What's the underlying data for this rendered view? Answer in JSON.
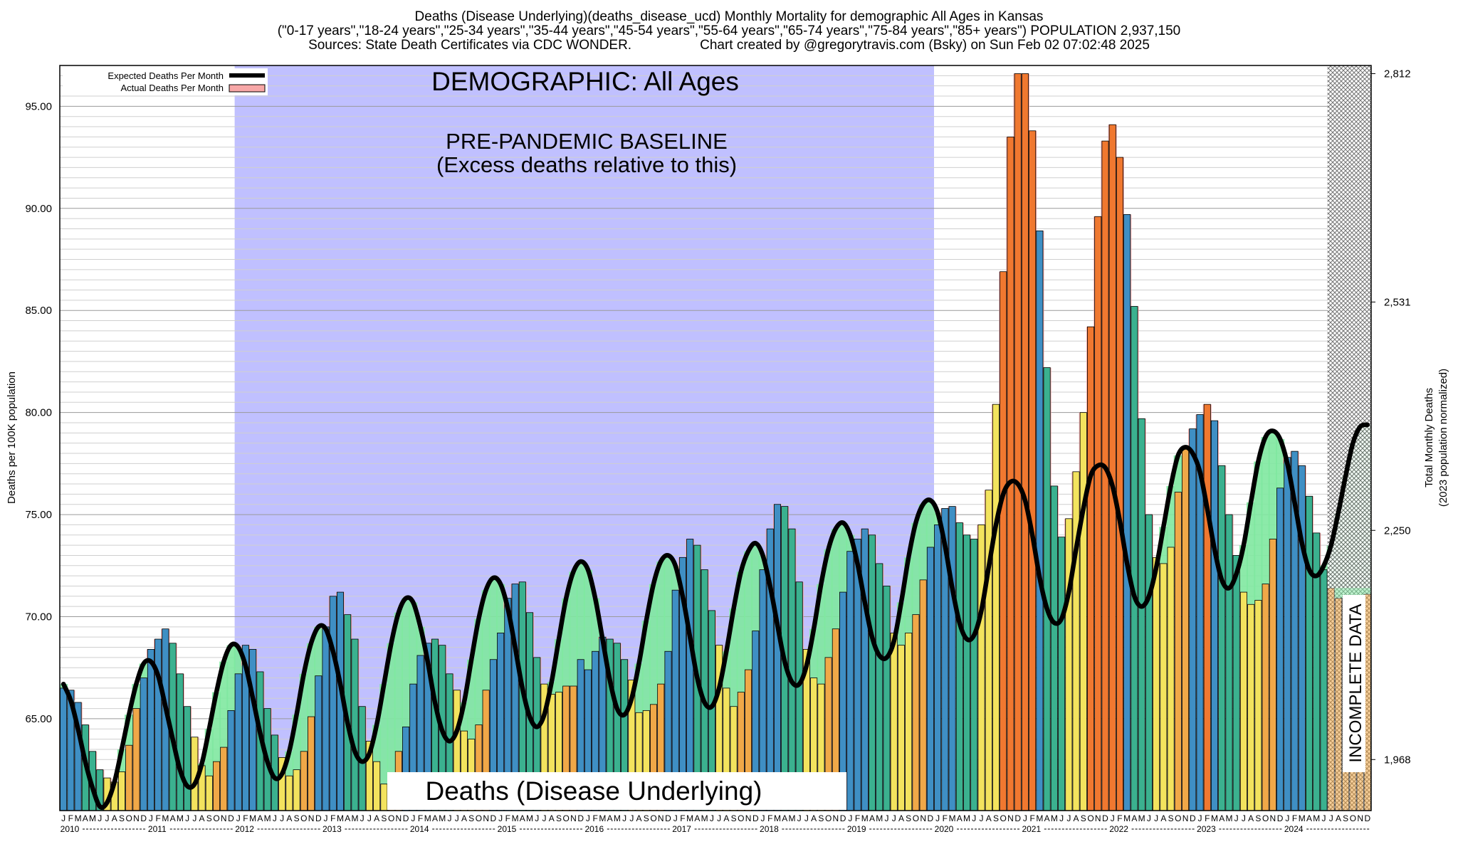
{
  "titles": {
    "line1": "Deaths (Disease Underlying)(deaths_disease_ucd) Monthly Mortality for demographic All Ages in Kansas",
    "line2": "(\"0-17 years\",\"18-24 years\",\"25-34 years\",\"35-44 years\",\"45-54 years\",\"55-64 years\",\"65-74 years\",\"75-84 years\",\"85+ years\") POPULATION 2,937,150",
    "line3_left": "Sources: State Death Certificates via CDC WONDER.",
    "line3_right": "Chart created by @gregorytravis.com (Bsky) on Sun Feb 02 07:02:48 2025"
  },
  "labels": {
    "demographic": "DEMOGRAPHIC: All Ages",
    "baseline_line1": "PRE-PANDEMIC BASELINE",
    "baseline_line2": "(Excess deaths relative to this)",
    "metric": "Deaths (Disease Underlying)",
    "incomplete": "INCOMPLETE DATA"
  },
  "legend": {
    "expected": "Expected Deaths Per Month",
    "actual": "Actual Deaths Per Month"
  },
  "colors": {
    "baseline_band": "#c0c0ff",
    "expected_line": "#000000",
    "actual_fill": "#f7a7a7",
    "excess_below": "#80e8a0",
    "winter_bar": "#3f8fc4",
    "spring_bar": "#3bb18f",
    "summer_bar": "#f3e35e",
    "fall_bar": "#f0a848",
    "peak_bar": "#f07830"
  },
  "chart_data": {
    "type": "bar",
    "ylabel": "Deaths per 100K population",
    "ylabel_right_line1": "Total Monthly Deaths",
    "ylabel_right_line2": "(2023 population normalized)",
    "ylim": [
      60.5,
      97.0
    ],
    "yticks": [
      65,
      70,
      75,
      80,
      85,
      90,
      95
    ],
    "ytick_labels": [
      "65.00",
      "70.00",
      "75.00",
      "80.00",
      "85.00",
      "90.00",
      "95.00"
    ],
    "yticks_right_values": [
      1968,
      2250,
      2531,
      2812
    ],
    "yticks_right_labels": [
      "1,968",
      "2,250",
      "2,531",
      "2,812"
    ],
    "start": "2010-01",
    "end": "2024-12",
    "month_letters": [
      "J",
      "F",
      "M",
      "A",
      "M",
      "J",
      "J",
      "A",
      "S",
      "O",
      "N",
      "D"
    ],
    "years": [
      "2010",
      "2011",
      "2012",
      "2013",
      "2014",
      "2015",
      "2016",
      "2017",
      "2018",
      "2019",
      "2020",
      "2021",
      "2022",
      "2023",
      "2024"
    ],
    "baseline_period": [
      "2012-01",
      "2019-12"
    ],
    "incomplete_from": "2024-07",
    "actual": [
      66.5,
      66.4,
      65.8,
      64.7,
      63.4,
      62.5,
      62.1,
      61.9,
      62.4,
      63.7,
      65.5,
      67.0,
      68.4,
      68.9,
      69.4,
      68.7,
      67.2,
      65.6,
      64.1,
      62.7,
      62.2,
      62.9,
      63.6,
      65.4,
      67.2,
      68.6,
      68.4,
      67.3,
      65.5,
      64.2,
      63.1,
      62.2,
      62.5,
      63.4,
      65.1,
      67.1,
      69.5,
      71.0,
      71.2,
      70.1,
      68.9,
      65.6,
      63.9,
      62.9,
      61.8,
      62.2,
      63.4,
      64.6,
      66.7,
      68.1,
      68.7,
      68.9,
      68.6,
      67.2,
      66.4,
      64.4,
      64.0,
      64.7,
      66.4,
      67.9,
      69.2,
      70.9,
      71.6,
      71.7,
      70.2,
      68.0,
      66.7,
      66.2,
      66.3,
      66.6,
      66.6,
      67.9,
      67.4,
      68.3,
      69.0,
      68.9,
      68.7,
      67.9,
      66.9,
      65.3,
      65.4,
      65.7,
      66.7,
      68.3,
      71.3,
      72.9,
      73.8,
      73.5,
      72.3,
      70.3,
      68.6,
      66.5,
      65.6,
      66.3,
      67.4,
      69.3,
      72.3,
      74.3,
      75.5,
      75.4,
      74.3,
      71.7,
      68.4,
      67.0,
      66.7,
      68.0,
      69.4,
      71.2,
      73.2,
      73.8,
      74.3,
      74.0,
      72.6,
      71.5,
      69.2,
      68.6,
      69.2,
      70.1,
      71.8,
      73.4,
      74.5,
      75.3,
      75.4,
      74.6,
      74.0,
      73.8,
      74.5,
      76.2,
      80.4,
      86.9,
      93.5,
      96.6,
      96.6,
      93.8,
      88.9,
      82.2,
      76.4,
      73.9,
      74.8,
      77.1,
      80.0,
      84.2,
      89.6,
      93.3,
      94.1,
      92.5,
      89.7,
      85.2,
      79.7,
      75.0,
      72.9,
      72.6,
      73.4,
      76.1,
      78.3,
      79.2,
      79.9,
      80.4,
      79.6,
      77.4,
      75.0,
      73.0,
      71.2,
      70.6,
      70.8,
      71.6,
      73.8,
      76.3,
      77.8,
      78.1,
      77.4,
      75.9,
      74.1,
      72.3,
      71.4,
      70.9,
      70.9,
      70.7,
      70.9,
      71.1
    ],
    "expected": [
      66.7,
      65.9,
      64.5,
      62.9,
      61.6,
      60.7,
      60.9,
      61.9,
      63.5,
      65.2,
      66.7,
      67.7,
      67.8,
      67.1,
      65.6,
      64.0,
      62.5,
      61.7,
      61.8,
      62.8,
      64.5,
      66.3,
      67.8,
      68.6,
      68.5,
      67.6,
      66.0,
      64.3,
      62.9,
      62.1,
      62.3,
      63.4,
      65.2,
      67.2,
      68.7,
      69.5,
      69.4,
      68.3,
      66.7,
      64.8,
      63.4,
      62.9,
      63.3,
      64.7,
      66.7,
      68.7,
      70.2,
      70.9,
      70.7,
      69.5,
      67.8,
      65.8,
      64.4,
      63.9,
      64.4,
      65.8,
      67.9,
      69.9,
      71.3,
      71.9,
      71.6,
      70.4,
      68.5,
      66.5,
      65.1,
      64.6,
      65.2,
      66.8,
      68.9,
      70.9,
      72.2,
      72.7,
      72.3,
      70.9,
      68.9,
      66.9,
      65.5,
      65.2,
      66.0,
      67.7,
      69.8,
      71.6,
      72.7,
      73.0,
      72.5,
      71.0,
      69.0,
      67.0,
      65.8,
      65.6,
      66.5,
      68.3,
      70.4,
      72.2,
      73.2,
      73.6,
      73.0,
      71.5,
      69.6,
      67.8,
      66.8,
      66.7,
      67.6,
      69.4,
      71.6,
      73.3,
      74.3,
      74.6,
      74.0,
      72.6,
      70.7,
      69.0,
      68.1,
      68.0,
      68.8,
      70.7,
      72.9,
      74.6,
      75.5,
      75.7,
      75.1,
      73.5,
      71.4,
      69.7,
      68.9,
      69.1,
      70.3,
      72.4,
      74.5,
      76.0,
      76.6,
      76.5,
      75.7,
      74.0,
      71.9,
      70.4,
      69.7,
      69.9,
      71.2,
      73.3,
      75.3,
      76.9,
      77.4,
      77.3,
      76.4,
      74.7,
      72.6,
      71.0,
      70.5,
      71.0,
      72.4,
      74.4,
      76.4,
      77.9,
      78.3,
      78.0,
      77.1,
      75.3,
      73.3,
      71.8,
      71.4,
      72.1,
      73.5,
      75.6,
      77.6,
      78.8,
      79.1,
      78.7,
      77.5,
      75.6,
      73.6,
      72.3,
      72.0,
      72.5,
      73.5,
      75.1,
      76.9,
      78.5,
      79.3,
      79.4
    ]
  }
}
